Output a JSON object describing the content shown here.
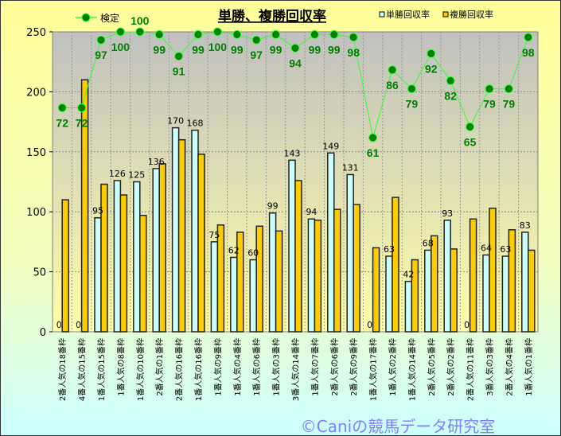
{
  "chart_data": {
    "type": "bar",
    "title": "単勝、複勝回収率",
    "watermark": "©Caniの競馬データ研究室",
    "xlabel": "",
    "ylabel": "",
    "ylim": [
      0,
      250
    ],
    "yticks": [
      0,
      50,
      100,
      150,
      200,
      250
    ],
    "grid": true,
    "legend": {
      "line": "検定",
      "bars": [
        "単勝回収率",
        "複勝回収率"
      ],
      "placement": "top"
    },
    "categories": [
      "2番人気の18番枠",
      "4番人気の15番枠",
      "1番人気の15番枠",
      "1番人気の8番枠",
      "1番人気の10番枠",
      "2番人気の1番枠",
      "2番人気の16番枠",
      "1番人気の16番枠",
      "1番人気の9番枠",
      "1番人気の4番枠",
      "1番人気の6番枠",
      "1番人気の3番枠",
      "3番人気の14番枠",
      "1番人気の7番枠",
      "2番人気の6番枠",
      "2番人気の9番枠",
      "1番人気の17番枠",
      "1番人気の2番枠",
      "1番人気の14番枠",
      "2番人気の5番枠",
      "2番人気の2番枠",
      "2番人気の11番枠",
      "3番人気の3番枠",
      "2番人気の4番枠",
      "1番人気の1番枠"
    ],
    "series": [
      {
        "name": "単勝回収率",
        "type": "bar",
        "color": "#ccffff",
        "values": [
          0,
          0,
          95,
          126,
          125,
          136,
          170,
          168,
          75,
          62,
          60,
          99,
          143,
          94,
          149,
          131,
          0,
          63,
          42,
          68,
          93,
          0,
          64,
          63,
          83
        ]
      },
      {
        "name": "複勝回収率",
        "type": "bar",
        "color": "#ffcc00",
        "values": [
          110,
          210,
          123,
          114,
          97,
          140,
          160,
          148,
          89,
          83,
          88,
          84,
          126,
          93,
          102,
          106,
          70,
          112,
          60,
          80,
          69,
          94,
          103,
          85,
          68
        ]
      },
      {
        "name": "検定",
        "type": "line",
        "color": "#008000",
        "secondary_ylim": [
          -10.5,
          100
        ],
        "values": [
          72,
          72,
          97,
          100,
          100,
          99,
          91,
          99,
          100,
          99,
          97,
          99,
          94,
          99,
          99,
          98,
          61,
          86,
          79,
          92,
          82,
          65,
          79,
          79,
          98
        ]
      }
    ]
  }
}
